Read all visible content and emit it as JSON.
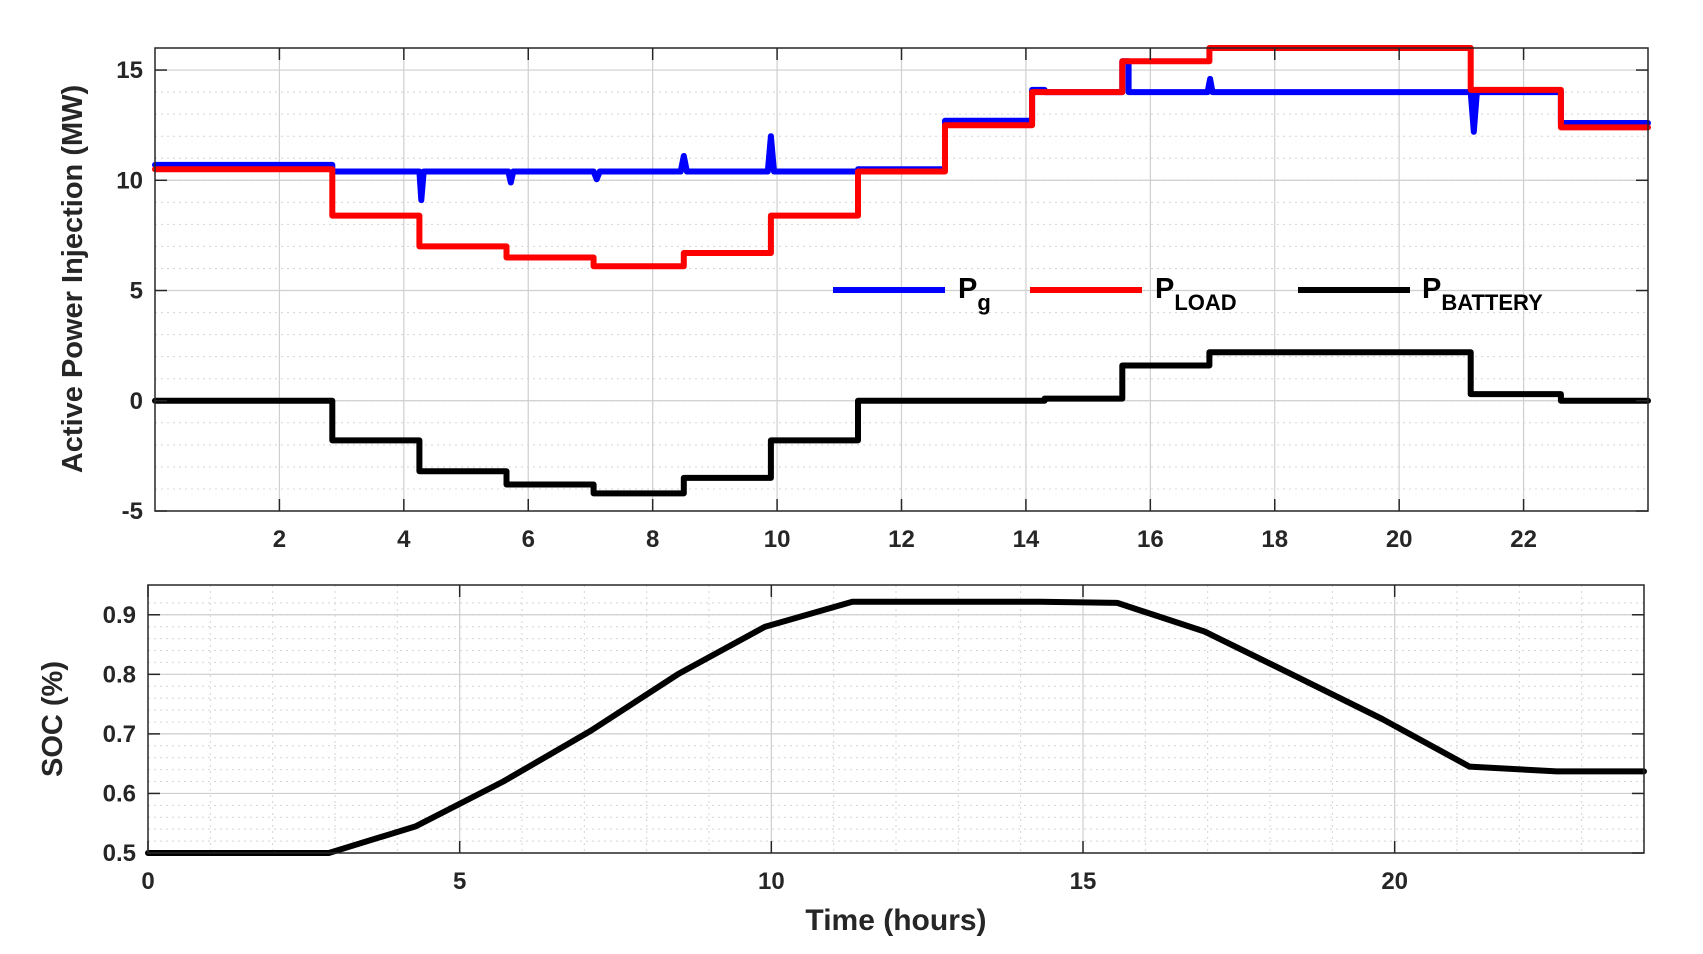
{
  "chart_data": [
    {
      "type": "line",
      "ylabel": "Active Power Injection (MW)",
      "xlabel": "",
      "xlim": [
        0,
        24
      ],
      "ylim": [
        -5,
        16
      ],
      "xticks": [
        "2",
        "4",
        "6",
        "8",
        "10",
        "12",
        "14",
        "16",
        "18",
        "20",
        "22"
      ],
      "yticks": [
        "-5",
        "0",
        "5",
        "10",
        "15"
      ],
      "grid": true,
      "legend_position": "center-right",
      "series": [
        {
          "key": "pg",
          "name_main": "P",
          "name_sub": "g",
          "color": "#0000ff",
          "points": [
            [
              0,
              10.7
            ],
            [
              2.85,
              10.7
            ],
            [
              2.85,
              10.4
            ],
            [
              4.25,
              10.4
            ],
            [
              4.28,
              9.1
            ],
            [
              4.32,
              10.4
            ],
            [
              5.68,
              10.4
            ],
            [
              5.72,
              9.9
            ],
            [
              5.76,
              10.4
            ],
            [
              7.05,
              10.4
            ],
            [
              7.1,
              10.05
            ],
            [
              7.15,
              10.4
            ],
            [
              8.45,
              10.4
            ],
            [
              8.5,
              11.1
            ],
            [
              8.55,
              10.4
            ],
            [
              9.85,
              10.4
            ],
            [
              9.9,
              12.0
            ],
            [
              9.95,
              10.4
            ],
            [
              11.3,
              10.4
            ],
            [
              11.3,
              10.5
            ],
            [
              12.7,
              10.5
            ],
            [
              12.7,
              12.7
            ],
            [
              14.1,
              12.7
            ],
            [
              14.1,
              14.1
            ],
            [
              14.3,
              14.1
            ],
            [
              14.3,
              14.0
            ],
            [
              15.55,
              14.0
            ],
            [
              15.55,
              15.4
            ],
            [
              15.65,
              15.4
            ],
            [
              15.65,
              14.0
            ],
            [
              16.92,
              14.0
            ],
            [
              16.96,
              14.6
            ],
            [
              17.0,
              14.0
            ],
            [
              21.15,
              14.0
            ],
            [
              21.2,
              12.2
            ],
            [
              21.25,
              14.0
            ],
            [
              22.6,
              14.0
            ],
            [
              22.6,
              12.6
            ],
            [
              24,
              12.6
            ]
          ]
        },
        {
          "key": "pload",
          "name_main": "P",
          "name_sub": "LOAD",
          "color": "#ff0000",
          "points": [
            [
              0,
              10.5
            ],
            [
              2.85,
              10.5
            ],
            [
              2.85,
              8.4
            ],
            [
              4.25,
              8.4
            ],
            [
              4.25,
              7.0
            ],
            [
              5.65,
              7.0
            ],
            [
              5.65,
              6.5
            ],
            [
              7.05,
              6.5
            ],
            [
              7.05,
              6.1
            ],
            [
              8.5,
              6.1
            ],
            [
              8.5,
              6.7
            ],
            [
              9.9,
              6.7
            ],
            [
              9.9,
              8.4
            ],
            [
              11.3,
              8.4
            ],
            [
              11.3,
              10.4
            ],
            [
              12.7,
              10.4
            ],
            [
              12.7,
              12.5
            ],
            [
              14.1,
              12.5
            ],
            [
              14.1,
              14.0
            ],
            [
              15.55,
              14.0
            ],
            [
              15.55,
              15.4
            ],
            [
              16.95,
              15.4
            ],
            [
              16.95,
              16.0
            ],
            [
              21.15,
              16.0
            ],
            [
              21.15,
              14.1
            ],
            [
              22.6,
              14.1
            ],
            [
              22.6,
              12.4
            ],
            [
              24,
              12.4
            ]
          ]
        },
        {
          "key": "pbat",
          "name_main": "P",
          "name_sub": "BATTERY",
          "color": "#000000",
          "points": [
            [
              0,
              0
            ],
            [
              2.85,
              0
            ],
            [
              2.85,
              -1.8
            ],
            [
              4.25,
              -1.8
            ],
            [
              4.25,
              -3.2
            ],
            [
              5.65,
              -3.2
            ],
            [
              5.65,
              -3.8
            ],
            [
              7.05,
              -3.8
            ],
            [
              7.05,
              -4.2
            ],
            [
              8.5,
              -4.2
            ],
            [
              8.5,
              -3.5
            ],
            [
              9.9,
              -3.5
            ],
            [
              9.9,
              -1.8
            ],
            [
              11.3,
              -1.8
            ],
            [
              11.3,
              0
            ],
            [
              14.3,
              0
            ],
            [
              14.3,
              0.1
            ],
            [
              15.55,
              0.1
            ],
            [
              15.55,
              1.6
            ],
            [
              16.95,
              1.6
            ],
            [
              16.95,
              2.2
            ],
            [
              21.15,
              2.2
            ],
            [
              21.15,
              0.3
            ],
            [
              22.6,
              0.3
            ],
            [
              22.6,
              0
            ],
            [
              24,
              0
            ]
          ]
        }
      ]
    },
    {
      "type": "line",
      "ylabel": "SOC (%)",
      "xlabel": "Time (hours)",
      "xlim": [
        0,
        24
      ],
      "ylim": [
        0.5,
        0.95
      ],
      "xticks": [
        "0",
        "5",
        "10",
        "15",
        "20"
      ],
      "yticks": [
        "0.5",
        "0.6",
        "0.7",
        "0.8",
        "0.9"
      ],
      "grid": true,
      "series": [
        {
          "key": "soc",
          "color": "#000000",
          "points": [
            [
              0,
              0.5
            ],
            [
              2.9,
              0.5
            ],
            [
              4.3,
              0.545
            ],
            [
              5.7,
              0.62
            ],
            [
              7.1,
              0.705
            ],
            [
              8.5,
              0.8
            ],
            [
              9.9,
              0.88
            ],
            [
              11.3,
              0.922
            ],
            [
              14.3,
              0.922
            ],
            [
              15.55,
              0.92
            ],
            [
              16.95,
              0.872
            ],
            [
              18.35,
              0.8
            ],
            [
              19.8,
              0.725
            ],
            [
              21.2,
              0.645
            ],
            [
              22.6,
              0.637
            ],
            [
              24,
              0.637
            ]
          ]
        }
      ]
    }
  ]
}
